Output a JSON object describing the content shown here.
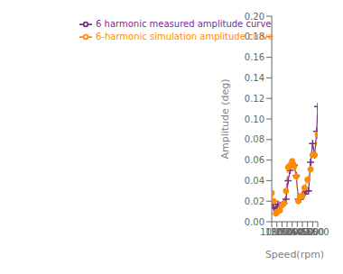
{
  "chart_data": {
    "type": "line",
    "xlabel": "Speed(rpm)",
    "ylabel": "Amplitude (deg)",
    "series": [
      {
        "name": "6 harmonic measured amplitude curve",
        "color": "#7B2D8B",
        "marker": "plus",
        "line_style": "solid",
        "x": [
          1000,
          1200,
          1400,
          1600,
          1800,
          2000,
          2200,
          2400,
          2600,
          2800,
          3000,
          3200,
          3400,
          3600,
          3800,
          4000,
          4200,
          4400,
          4600,
          4800,
          5000,
          5200,
          5400,
          5500
        ],
        "values": [
          0.019,
          0.014,
          0.013,
          0.017,
          0.016,
          0.016,
          0.018,
          0.022,
          0.04,
          0.05,
          0.057,
          0.055,
          0.045,
          0.022,
          0.022,
          0.026,
          0.027,
          0.03,
          0.03,
          0.058,
          0.076,
          0.065,
          0.088,
          0.112
        ]
      },
      {
        "name": "6-harmonic simulation amplitude curve",
        "color": "#FF8C00",
        "marker": "circle",
        "line_style": "dashed",
        "x": [
          1000,
          1200,
          1400,
          1600,
          1800,
          2000,
          2200,
          2400,
          2600,
          2800,
          3000,
          3200,
          3400,
          3600,
          3800,
          4000,
          4200,
          4500,
          4800,
          5000,
          5200,
          5500
        ],
        "values": [
          0.028,
          0.02,
          0.008,
          0.01,
          0.011,
          0.016,
          0.018,
          0.03,
          0.053,
          0.055,
          0.059,
          0.054,
          0.044,
          0.02,
          0.025,
          0.025,
          0.033,
          0.041,
          0.051,
          0.065,
          0.065,
          0.085
        ]
      }
    ],
    "xlim": [
      1000,
      5500
    ],
    "ylim": [
      0.0,
      0.2
    ],
    "xticks": [
      1000,
      1500,
      2000,
      2500,
      3000,
      3500,
      4000,
      4500,
      5000,
      5500
    ],
    "yticks": [
      {
        "value": 0.0,
        "label": "0.00"
      },
      0.02,
      0.04,
      0.06,
      0.08,
      {
        "value": 0.1,
        "label": "0.10"
      },
      0.12,
      0.14,
      0.16,
      0.18,
      {
        "value": 0.2,
        "label": "0.20"
      }
    ],
    "legend": "upper left",
    "grid": false
  }
}
